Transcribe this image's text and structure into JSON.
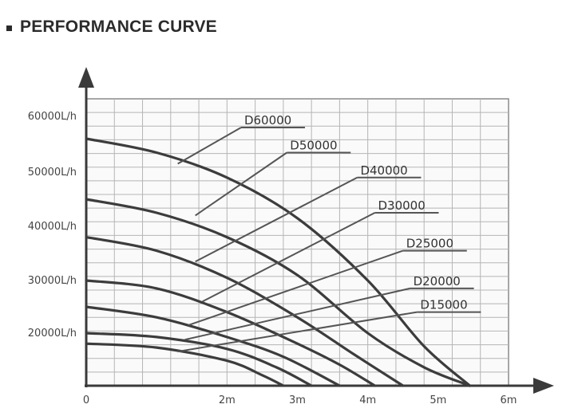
{
  "heading": {
    "title": "PERFORMANCE CURVE"
  },
  "chart_data": {
    "type": "line",
    "title": "PERFORMANCE CURVE",
    "xlabel": "",
    "ylabel": "",
    "xlim": [
      0,
      6
    ],
    "ylim": [
      0,
      70000
    ],
    "x_ticks": [
      {
        "value": 0,
        "label": "0"
      },
      {
        "value": 2,
        "label": "2m"
      },
      {
        "value": 3,
        "label": "3m"
      },
      {
        "value": 4,
        "label": "4m"
      },
      {
        "value": 5,
        "label": "5m"
      },
      {
        "value": 6,
        "label": "6m"
      }
    ],
    "y_ticks": [
      {
        "value": 20000,
        "label": "20000L/h"
      },
      {
        "value": 30000,
        "label": "30000L/h"
      },
      {
        "value": 40000,
        "label": "40000L/h"
      },
      {
        "value": 50000,
        "label": "50000L/h"
      },
      {
        "value": 60000,
        "label": "60000L/h"
      }
    ],
    "grid": true,
    "series": [
      {
        "name": "D60000",
        "points": [
          [
            0,
            56000
          ],
          [
            1,
            53500
          ],
          [
            2,
            49000
          ],
          [
            3,
            41500
          ],
          [
            4,
            30000
          ],
          [
            4.8,
            15000
          ],
          [
            5.45,
            0
          ]
        ]
      },
      {
        "name": "D50000",
        "points": [
          [
            0,
            45000
          ],
          [
            1,
            42500
          ],
          [
            2,
            38000
          ],
          [
            3,
            31000
          ],
          [
            4,
            20000
          ],
          [
            4.8,
            7000
          ],
          [
            5.45,
            0
          ]
        ]
      },
      {
        "name": "D40000",
        "points": [
          [
            0,
            38000
          ],
          [
            1,
            35500
          ],
          [
            2,
            30500
          ],
          [
            3,
            23000
          ],
          [
            3.8,
            12000
          ],
          [
            4.5,
            0
          ]
        ]
      },
      {
        "name": "D30000",
        "points": [
          [
            0,
            30000
          ],
          [
            1,
            28500
          ],
          [
            2,
            24000
          ],
          [
            3,
            16000
          ],
          [
            3.6,
            8000
          ],
          [
            4.1,
            0
          ]
        ]
      },
      {
        "name": "D25000",
        "points": [
          [
            0,
            25000
          ],
          [
            1,
            23000
          ],
          [
            2,
            18500
          ],
          [
            2.8,
            11000
          ],
          [
            3.6,
            0
          ]
        ]
      },
      {
        "name": "D20000",
        "points": [
          [
            0,
            20000
          ],
          [
            1,
            18500
          ],
          [
            2,
            14000
          ],
          [
            2.7,
            7000
          ],
          [
            3.2,
            0
          ]
        ]
      },
      {
        "name": "D15000",
        "points": [
          [
            0,
            16000
          ],
          [
            1,
            14500
          ],
          [
            2,
            9500
          ],
          [
            2.5,
            4000
          ],
          [
            2.8,
            0
          ]
        ]
      }
    ],
    "series_labels": [
      {
        "name": "D60000",
        "at": [
          2.2,
          58000
        ],
        "pointer": [
          1.3,
          51500
        ]
      },
      {
        "name": "D50000",
        "at": [
          2.85,
          53500
        ],
        "pointer": [
          1.55,
          42000
        ]
      },
      {
        "name": "D40000",
        "at": [
          3.85,
          49000
        ],
        "pointer": [
          1.55,
          33500
        ]
      },
      {
        "name": "D30000",
        "at": [
          4.1,
          42500
        ],
        "pointer": [
          1.65,
          26000
        ]
      },
      {
        "name": "D25000",
        "at": [
          4.5,
          35500
        ],
        "pointer": [
          1.45,
          21500
        ]
      },
      {
        "name": "D20000",
        "at": [
          4.6,
          28500
        ],
        "pointer": [
          1.4,
          17500
        ]
      },
      {
        "name": "D15000",
        "at": [
          4.7,
          24000
        ],
        "pointer": [
          1.3,
          13000
        ]
      }
    ]
  }
}
